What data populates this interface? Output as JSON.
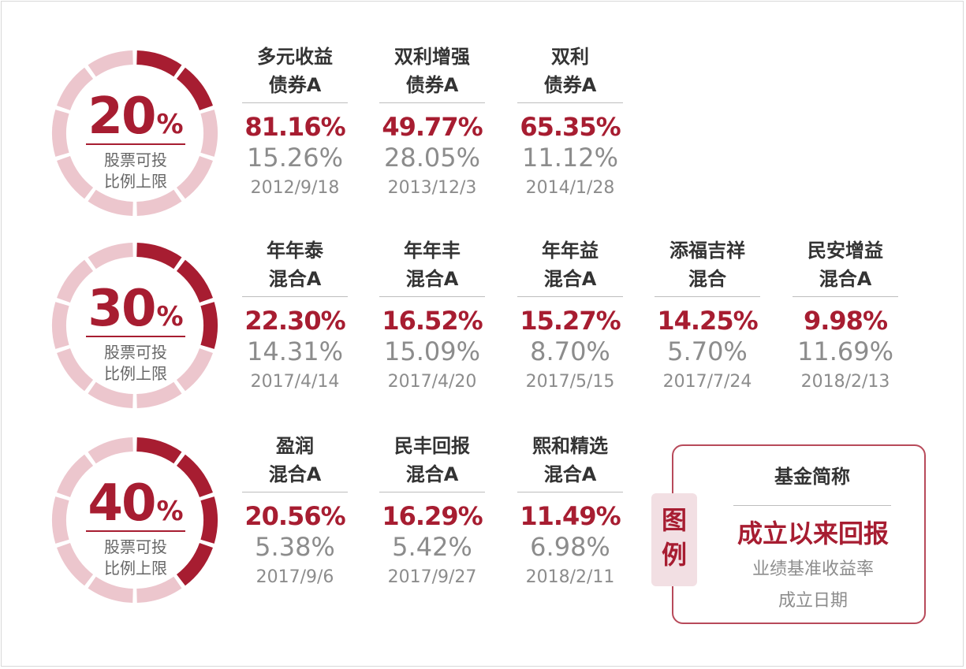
{
  "colors": {
    "accent": "#a71d31",
    "ring_light": "#ecc6cd",
    "text_dark": "#333333",
    "text_gray": "#8c8c8c"
  },
  "groups": [
    {
      "percent": "20",
      "unit": "%",
      "limit_label_line1": "股票可投",
      "limit_label_line2": "比例上限",
      "ring_fill_fraction": 0.2,
      "funds": [
        {
          "name_line1": "多元收益",
          "name_line2": "债券A",
          "return": "81.16%",
          "benchmark": "15.26%",
          "date": "2012/9/18"
        },
        {
          "name_line1": "双利增强",
          "name_line2": "债券A",
          "return": "49.77%",
          "benchmark": "28.05%",
          "date": "2013/12/3"
        },
        {
          "name_line1": "双利",
          "name_line2": "债券A",
          "return": "65.35%",
          "benchmark": "11.12%",
          "date": "2014/1/28"
        }
      ]
    },
    {
      "percent": "30",
      "unit": "%",
      "limit_label_line1": "股票可投",
      "limit_label_line2": "比例上限",
      "ring_fill_fraction": 0.3,
      "funds": [
        {
          "name_line1": "年年泰",
          "name_line2": "混合A",
          "return": "22.30%",
          "benchmark": "14.31%",
          "date": "2017/4/14"
        },
        {
          "name_line1": "年年丰",
          "name_line2": "混合A",
          "return": "16.52%",
          "benchmark": "15.09%",
          "date": "2017/4/20"
        },
        {
          "name_line1": "年年益",
          "name_line2": "混合A",
          "return": "15.27%",
          "benchmark": "8.70%",
          "date": "2017/5/15"
        },
        {
          "name_line1": "添福吉祥",
          "name_line2": "混合",
          "return": "14.25%",
          "benchmark": "5.70%",
          "date": "2017/7/24"
        },
        {
          "name_line1": "民安增益",
          "name_line2": "混合A",
          "return": "9.98%",
          "benchmark": "11.69%",
          "date": "2018/2/13"
        }
      ]
    },
    {
      "percent": "40",
      "unit": "%",
      "limit_label_line1": "股票可投",
      "limit_label_line2": "比例上限",
      "ring_fill_fraction": 0.4,
      "funds": [
        {
          "name_line1": "盈润",
          "name_line2": "混合A",
          "return": "20.56%",
          "benchmark": "5.38%",
          "date": "2017/9/6"
        },
        {
          "name_line1": "民丰回报",
          "name_line2": "混合A",
          "return": "16.29%",
          "benchmark": "5.42%",
          "date": "2017/9/27"
        },
        {
          "name_line1": "熙和精选",
          "name_line2": "混合A",
          "return": "11.49%",
          "benchmark": "6.98%",
          "date": "2018/2/11"
        }
      ]
    }
  ],
  "legend": {
    "tag_line1": "图",
    "tag_line2": "例",
    "title": "基金简称",
    "return_label": "成立以来回报",
    "benchmark_label": "业绩基准收益率",
    "date_label": "成立日期"
  }
}
